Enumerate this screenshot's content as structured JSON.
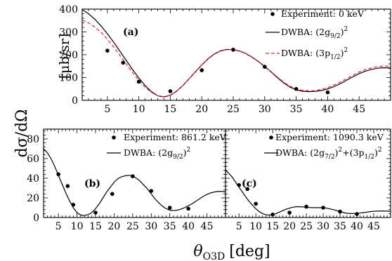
{
  "figure": {
    "ylabel_shared": "dσ/dΩ",
    "xlabel": "θ",
    "xlabel_sub": "O3D",
    "xlabel_unit": "[deg]"
  },
  "chart_data": [
    {
      "id": "a",
      "type": "scatter",
      "panel_label": "(a)",
      "ylabel": "[μb/sr]",
      "xlim": [
        1,
        50
      ],
      "ylim": [
        0,
        400
      ],
      "xticks": [
        5,
        10,
        15,
        20,
        25,
        30,
        35,
        40,
        45
      ],
      "yticks": [
        0,
        100,
        200,
        300,
        400
      ],
      "legend_position": "top-right",
      "experiment": {
        "label": "Experiment: 0 keV",
        "x": [
          5,
          7.5,
          10,
          15,
          20,
          25,
          30,
          35,
          40
        ],
        "y": [
          218,
          165,
          82,
          40,
          132,
          222,
          147,
          50,
          35
        ]
      },
      "curves": [
        {
          "name": "DWBA: (2g",
          "name_sub": "9/2",
          "name_tail": ")",
          "name_sup": "2",
          "color": "#000000",
          "dash": "solid",
          "x": [
            1,
            2,
            3,
            4,
            5,
            6,
            7,
            8,
            9,
            10,
            11,
            12,
            13,
            14,
            15,
            16,
            17,
            18,
            19,
            20,
            21,
            22,
            23,
            24,
            25,
            26,
            27,
            28,
            29,
            30,
            31,
            32,
            33,
            34,
            35,
            36,
            37,
            38,
            39,
            40,
            41,
            42,
            43,
            44,
            45,
            46,
            47,
            48,
            49,
            50
          ],
          "y": [
            398,
            380,
            356,
            326,
            292,
            255,
            215,
            175,
            135,
            98,
            65,
            38,
            20,
            15,
            22,
            40,
            65,
            95,
            125,
            155,
            182,
            203,
            217,
            223,
            222,
            216,
            205,
            189,
            170,
            148,
            125,
            100,
            77,
            58,
            46,
            40,
            38,
            39,
            43,
            50,
            60,
            73,
            88,
            103,
            117,
            128,
            136,
            141,
            143,
            142
          ]
        },
        {
          "name": "DWBA: (3p",
          "name_sub": "1/2",
          "name_tail": ")",
          "name_sup": "2",
          "color": "#e8262b",
          "dash": "dashed",
          "x": [
            1,
            2,
            3,
            4,
            5,
            6,
            7,
            8,
            9,
            10,
            11,
            12,
            13,
            14,
            15,
            16,
            17,
            18,
            19,
            20,
            21,
            22,
            23,
            24,
            25,
            26,
            27,
            28,
            29,
            30,
            31,
            32,
            33,
            34,
            35,
            36,
            37,
            38,
            39,
            40,
            41,
            42,
            43,
            44,
            45,
            46,
            47,
            48,
            49,
            50
          ],
          "y": [
            352,
            340,
            322,
            298,
            268,
            234,
            197,
            159,
            122,
            88,
            58,
            35,
            20,
            16,
            23,
            40,
            65,
            95,
            126,
            156,
            183,
            204,
            218,
            224,
            223,
            217,
            206,
            190,
            171,
            149,
            126,
            102,
            80,
            62,
            50,
            44,
            42,
            43,
            48,
            56,
            67,
            80,
            95,
            110,
            124,
            135,
            143,
            148,
            150,
            150
          ]
        }
      ]
    },
    {
      "id": "b",
      "type": "scatter",
      "panel_label": "(b)",
      "xlim": [
        1,
        50
      ],
      "ylim": [
        0,
        90
      ],
      "xticks": [
        5,
        10,
        15,
        20,
        25,
        30,
        35,
        40,
        45
      ],
      "yticks": [
        0,
        20,
        40,
        60,
        80
      ],
      "legend_position": "top",
      "experiment": {
        "label": "Experiment: 861.2 keV",
        "x": [
          5,
          7.5,
          9,
          15,
          19.5,
          25,
          30,
          35,
          40
        ],
        "y": [
          44,
          32,
          13,
          5,
          24,
          42,
          27,
          10,
          9
        ]
      },
      "curves": [
        {
          "name": "DWBA: (2g",
          "name_sub": "9/2",
          "name_tail": ")",
          "name_sup": "2",
          "color": "#000000",
          "dash": "solid",
          "x": [
            1,
            2,
            3,
            4,
            5,
            6,
            7,
            8,
            9,
            10,
            11,
            12,
            13,
            14,
            15,
            16,
            17,
            18,
            19,
            20,
            21,
            22,
            23,
            24,
            25,
            26,
            27,
            28,
            29,
            30,
            31,
            32,
            33,
            34,
            35,
            36,
            37,
            38,
            39,
            40,
            41,
            42,
            43,
            44,
            45,
            46,
            47,
            48,
            49,
            50
          ],
          "y": [
            70,
            66,
            60,
            52,
            43,
            34,
            25,
            17,
            10,
            5,
            2.5,
            2,
            3,
            5,
            9,
            14,
            20,
            26,
            31,
            36,
            39.5,
            41.5,
            42.5,
            43,
            42,
            40,
            37,
            33,
            29,
            24,
            19,
            15,
            11.5,
            9,
            7.5,
            7,
            7.5,
            8.5,
            10,
            12,
            14,
            16.5,
            19,
            21.5,
            23.5,
            25,
            26,
            26.5,
            26.5,
            26
          ]
        }
      ]
    },
    {
      "id": "c",
      "type": "scatter",
      "panel_label": "(c)",
      "xlim": [
        1,
        50
      ],
      "ylim": [
        0,
        90
      ],
      "xticks": [
        5,
        10,
        15,
        20,
        25,
        30,
        35,
        40,
        45
      ],
      "legend_position": "top",
      "experiment": {
        "label": "Experiment: 1090.3 keV",
        "x": [
          5,
          7.5,
          10,
          15,
          20,
          25,
          30,
          35,
          40
        ],
        "y": [
          33,
          29,
          14,
          3,
          5,
          11,
          10,
          6,
          3.5
        ]
      },
      "curves": [
        {
          "name": "DWBA: (2g",
          "name_sub": "7/2",
          "name_mid": ")",
          "name_sup": "2",
          "name_plus": "+(3p",
          "name_sub2": "1/2",
          "name_tail": ")",
          "name_sup2": "2",
          "color": "#000000",
          "dash": "solid",
          "x": [
            1,
            2,
            3,
            4,
            5,
            6,
            7,
            8,
            9,
            10,
            11,
            12,
            13,
            14,
            15,
            16,
            17,
            18,
            19,
            20,
            21,
            22,
            23,
            24,
            25,
            26,
            27,
            28,
            29,
            30,
            31,
            32,
            33,
            34,
            35,
            36,
            37,
            38,
            39,
            40,
            41,
            42,
            43,
            44,
            45,
            46,
            47,
            48,
            49,
            50
          ],
          "y": [
            48,
            45,
            41,
            36,
            31,
            26,
            21,
            16.5,
            12.5,
            9,
            6,
            4,
            2.8,
            2.5,
            3,
            4,
            5.5,
            7,
            8.5,
            9.5,
            10.5,
            11,
            11,
            10.8,
            10.5,
            10.2,
            10,
            10,
            10,
            10,
            9.5,
            8.8,
            8,
            7,
            6,
            5,
            4.3,
            4,
            4,
            4.2,
            4.6,
            5,
            5.5,
            6,
            6.3,
            6.5,
            6.6,
            6.6,
            6.5,
            6.3
          ]
        }
      ]
    }
  ]
}
